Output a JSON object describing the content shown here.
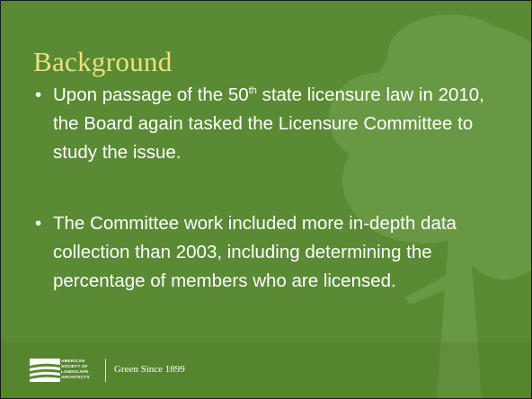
{
  "slide": {
    "title": "Background",
    "bullets": [
      {
        "before": "Upon passage of the 50",
        "sup": "th",
        "after": " state licensure law in 2010, the Board again tasked the Licensure Committee to study the issue."
      },
      {
        "text": "The Committee work included more in-depth data collection than 2003, including determining the percentage of members who are licensed."
      }
    ],
    "footer": {
      "org_lines": [
        "AMERICAN",
        "SOCIETY OF",
        "LANDSCAPE",
        "ARCHITECTS"
      ],
      "tagline": "Green Since 1899"
    }
  }
}
